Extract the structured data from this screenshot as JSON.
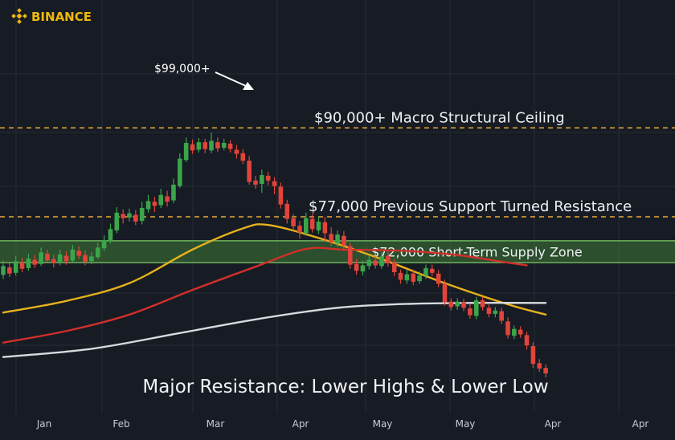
{
  "brand": {
    "name": "BINANCE",
    "color": "#f0b90b",
    "icon": "binance-diamond-icon"
  },
  "headline": "Major Resistance: Lower Highs & Lower Low",
  "peak_annotation": "$99,000+",
  "colors": {
    "background": "#161b24",
    "grid": "#262d38",
    "bull": "#3ba54a",
    "bear": "#e0443a",
    "dashed_level": "#e9a93a",
    "supply_zone": "#3f7a37",
    "ma_fast": "#e7b11b",
    "ma_mid": "#d12f2a",
    "ma_slow": "#d8dadd"
  },
  "chart_data": {
    "type": "candlestick",
    "x_ticks": [
      "Jan",
      "Feb",
      "Mar",
      "Apr",
      "May",
      "May",
      "Apr",
      "Apr"
    ],
    "grid": true,
    "y_range": [
      50000,
      104000
    ],
    "levels": [
      {
        "price": 90000,
        "label": "$90,000+ Macro Structural Ceiling",
        "style": "dashed"
      },
      {
        "price": 77000,
        "label": "$77,000 Previous Support Turned Resistance",
        "style": "dashed"
      }
    ],
    "zone": {
      "low": 70300,
      "high": 73500,
      "label": "$72,000 Short-Term Supply Zone"
    },
    "candles": [
      {
        "o": 68500,
        "c": 69800,
        "h": 70600,
        "l": 67900
      },
      {
        "o": 69600,
        "c": 68700,
        "h": 70200,
        "l": 68200
      },
      {
        "o": 68800,
        "c": 70500,
        "h": 71300,
        "l": 68400
      },
      {
        "o": 70300,
        "c": 69400,
        "h": 71000,
        "l": 68900
      },
      {
        "o": 69500,
        "c": 70900,
        "h": 71600,
        "l": 69100
      },
      {
        "o": 70700,
        "c": 70000,
        "h": 71400,
        "l": 69500
      },
      {
        "o": 70100,
        "c": 71800,
        "h": 72500,
        "l": 69800
      },
      {
        "o": 71600,
        "c": 70600,
        "h": 72200,
        "l": 70200
      },
      {
        "o": 70800,
        "c": 70200,
        "h": 71500,
        "l": 69600
      },
      {
        "o": 70300,
        "c": 71500,
        "h": 72200,
        "l": 69900
      },
      {
        "o": 71300,
        "c": 70500,
        "h": 72000,
        "l": 70000
      },
      {
        "o": 70600,
        "c": 72200,
        "h": 72900,
        "l": 70300
      },
      {
        "o": 72000,
        "c": 71300,
        "h": 72700,
        "l": 70800
      },
      {
        "o": 71400,
        "c": 70400,
        "h": 72100,
        "l": 69900
      },
      {
        "o": 70500,
        "c": 71200,
        "h": 71800,
        "l": 70100
      },
      {
        "o": 71100,
        "c": 72500,
        "h": 73200,
        "l": 70800
      },
      {
        "o": 72400,
        "c": 73600,
        "h": 74300,
        "l": 72000
      },
      {
        "o": 73500,
        "c": 75200,
        "h": 76000,
        "l": 73100
      },
      {
        "o": 75000,
        "c": 77600,
        "h": 78400,
        "l": 74600
      },
      {
        "o": 77400,
        "c": 76800,
        "h": 78100,
        "l": 76000
      },
      {
        "o": 76900,
        "c": 77500,
        "h": 78200,
        "l": 76300
      },
      {
        "o": 77300,
        "c": 76300,
        "h": 78000,
        "l": 75800
      },
      {
        "o": 76400,
        "c": 78300,
        "h": 79200,
        "l": 75900
      },
      {
        "o": 78100,
        "c": 79300,
        "h": 80200,
        "l": 77600
      },
      {
        "o": 79200,
        "c": 78600,
        "h": 79900,
        "l": 77700
      },
      {
        "o": 78700,
        "c": 80200,
        "h": 81100,
        "l": 78300
      },
      {
        "o": 80000,
        "c": 79200,
        "h": 80800,
        "l": 78500
      },
      {
        "o": 79400,
        "c": 81700,
        "h": 82600,
        "l": 79000
      },
      {
        "o": 81500,
        "c": 85500,
        "h": 86300,
        "l": 81200
      },
      {
        "o": 85300,
        "c": 87800,
        "h": 88600,
        "l": 85000
      },
      {
        "o": 87600,
        "c": 86700,
        "h": 88300,
        "l": 86200
      },
      {
        "o": 86800,
        "c": 87900,
        "h": 88500,
        "l": 86400
      },
      {
        "o": 87900,
        "c": 86900,
        "h": 88400,
        "l": 86300
      },
      {
        "o": 86700,
        "c": 88100,
        "h": 89300,
        "l": 86300
      },
      {
        "o": 87900,
        "c": 87000,
        "h": 88600,
        "l": 86500
      },
      {
        "o": 87100,
        "c": 87800,
        "h": 88400,
        "l": 86700
      },
      {
        "o": 87700,
        "c": 86900,
        "h": 88200,
        "l": 86400
      },
      {
        "o": 86800,
        "c": 86200,
        "h": 87500,
        "l": 85500
      },
      {
        "o": 86300,
        "c": 85200,
        "h": 86900,
        "l": 84700
      },
      {
        "o": 85200,
        "c": 82100,
        "h": 85900,
        "l": 81700
      },
      {
        "o": 82300,
        "c": 81700,
        "h": 83000,
        "l": 81100
      },
      {
        "o": 81800,
        "c": 83100,
        "h": 83900,
        "l": 80500
      },
      {
        "o": 83000,
        "c": 82300,
        "h": 83600,
        "l": 81600
      },
      {
        "o": 82200,
        "c": 81500,
        "h": 82800,
        "l": 80300
      },
      {
        "o": 81400,
        "c": 78800,
        "h": 82000,
        "l": 78200
      },
      {
        "o": 78900,
        "c": 76700,
        "h": 79500,
        "l": 76000
      },
      {
        "o": 76800,
        "c": 75600,
        "h": 77400,
        "l": 75000
      },
      {
        "o": 75700,
        "c": 74700,
        "h": 76400,
        "l": 73800
      },
      {
        "o": 74600,
        "c": 76800,
        "h": 77600,
        "l": 74200
      },
      {
        "o": 76700,
        "c": 75200,
        "h": 77400,
        "l": 74700
      },
      {
        "o": 75000,
        "c": 76300,
        "h": 77000,
        "l": 74500
      },
      {
        "o": 76200,
        "c": 74600,
        "h": 77000,
        "l": 73300
      },
      {
        "o": 74500,
        "c": 73300,
        "h": 75500,
        "l": 72700
      },
      {
        "o": 73100,
        "c": 74400,
        "h": 75000,
        "l": 72600
      },
      {
        "o": 74200,
        "c": 72800,
        "h": 74900,
        "l": 72200
      },
      {
        "o": 72700,
        "c": 70000,
        "h": 73200,
        "l": 69400
      },
      {
        "o": 70100,
        "c": 69100,
        "h": 70800,
        "l": 68500
      },
      {
        "o": 69000,
        "c": 69900,
        "h": 70600,
        "l": 68400
      },
      {
        "o": 69800,
        "c": 70700,
        "h": 71400,
        "l": 69300
      },
      {
        "o": 70600,
        "c": 69900,
        "h": 71200,
        "l": 69400
      },
      {
        "o": 69800,
        "c": 71200,
        "h": 71800,
        "l": 69400
      },
      {
        "o": 71300,
        "c": 70200,
        "h": 71900,
        "l": 69700
      },
      {
        "o": 70300,
        "c": 68900,
        "h": 70800,
        "l": 68300
      },
      {
        "o": 68800,
        "c": 67800,
        "h": 69300,
        "l": 67200
      },
      {
        "o": 67700,
        "c": 68600,
        "h": 69200,
        "l": 67200
      },
      {
        "o": 68700,
        "c": 67500,
        "h": 69300,
        "l": 67000
      },
      {
        "o": 67600,
        "c": 68400,
        "h": 69000,
        "l": 67200
      },
      {
        "o": 68400,
        "c": 69500,
        "h": 70000,
        "l": 67900
      },
      {
        "o": 69400,
        "c": 68800,
        "h": 70000,
        "l": 68300
      },
      {
        "o": 68700,
        "c": 67200,
        "h": 69200,
        "l": 66700
      },
      {
        "o": 67200,
        "c": 64500,
        "h": 67800,
        "l": 64000
      },
      {
        "o": 64600,
        "c": 63800,
        "h": 65100,
        "l": 63300
      },
      {
        "o": 63900,
        "c": 64600,
        "h": 65100,
        "l": 63400
      },
      {
        "o": 64500,
        "c": 63700,
        "h": 65000,
        "l": 63200
      },
      {
        "o": 63600,
        "c": 62600,
        "h": 64200,
        "l": 62100
      },
      {
        "o": 62500,
        "c": 64800,
        "h": 65300,
        "l": 62000
      },
      {
        "o": 64800,
        "c": 63800,
        "h": 65300,
        "l": 63300
      },
      {
        "o": 63700,
        "c": 62800,
        "h": 64200,
        "l": 62300
      },
      {
        "o": 62800,
        "c": 63300,
        "h": 63800,
        "l": 62300
      },
      {
        "o": 63200,
        "c": 61800,
        "h": 63700,
        "l": 61300
      },
      {
        "o": 61700,
        "c": 59700,
        "h": 62300,
        "l": 59200
      },
      {
        "o": 59600,
        "c": 60600,
        "h": 61100,
        "l": 59100
      },
      {
        "o": 60500,
        "c": 59800,
        "h": 61000,
        "l": 59300
      },
      {
        "o": 59700,
        "c": 58200,
        "h": 60200,
        "l": 57600
      },
      {
        "o": 58100,
        "c": 55500,
        "h": 58700,
        "l": 54900
      },
      {
        "o": 55600,
        "c": 54800,
        "h": 56200,
        "l": 54300
      },
      {
        "o": 54900,
        "c": 54100,
        "h": 55400,
        "l": 53500
      }
    ],
    "moving_averages": [
      {
        "name": "",
        "color_key": "ma_fast",
        "points": [
          [
            0,
            63000
          ],
          [
            10,
            64700
          ],
          [
            20,
            67300
          ],
          [
            30,
            72200
          ],
          [
            38,
            75300
          ],
          [
            42,
            75800
          ],
          [
            50,
            73900
          ],
          [
            60,
            70800
          ],
          [
            70,
            67300
          ],
          [
            80,
            64200
          ],
          [
            86,
            62700
          ]
        ]
      },
      {
        "name": "",
        "color_key": "ma_mid",
        "points": [
          [
            0,
            58600
          ],
          [
            10,
            60300
          ],
          [
            20,
            62700
          ],
          [
            30,
            66300
          ],
          [
            40,
            69700
          ],
          [
            48,
            72300
          ],
          [
            54,
            72200
          ],
          [
            64,
            72000
          ],
          [
            72,
            71400
          ],
          [
            80,
            70300
          ],
          [
            83,
            69900
          ]
        ]
      },
      {
        "name": "",
        "color_key": "ma_slow",
        "points": [
          [
            0,
            56500
          ],
          [
            14,
            57700
          ],
          [
            28,
            60000
          ],
          [
            40,
            62000
          ],
          [
            52,
            63600
          ],
          [
            62,
            64200
          ],
          [
            74,
            64400
          ],
          [
            86,
            64400
          ]
        ]
      }
    ]
  }
}
